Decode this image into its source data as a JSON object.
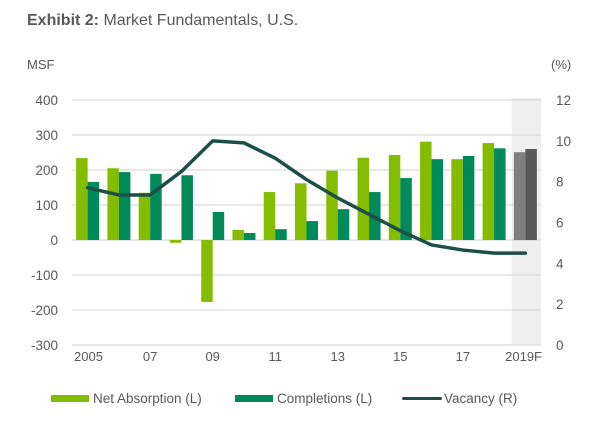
{
  "title": {
    "prefix": "Exhibit 2:",
    "text": " Market Fundamentals, U.S."
  },
  "left_unit": "MSF",
  "right_unit": "(%)",
  "colors": {
    "net_absorption": "#84bd00",
    "completions": "#008a5a",
    "vacancy": "#1d4f48",
    "forecast_net_absorption": "#7f7f7f",
    "forecast_completions": "#595959",
    "forecast_shade": "#efefef",
    "grid": "#d9d9d9"
  },
  "legend": [
    {
      "label": "Net Absorption (L)",
      "kind": "bar",
      "series": "net_absorption"
    },
    {
      "label": "Completions (L)",
      "kind": "bar",
      "series": "completions"
    },
    {
      "label": "Vacancy (R)",
      "kind": "line",
      "series": "vacancy"
    }
  ],
  "chart_data": {
    "type": "bar",
    "title": "Exhibit 2: Market Fundamentals, U.S.",
    "categories": [
      "2005",
      "2006",
      "2007",
      "2008",
      "2009",
      "2010",
      "2011",
      "2012",
      "2013",
      "2014",
      "2015",
      "2016",
      "2017",
      "2018",
      "2019F"
    ],
    "x_tick_labels": [
      "2005",
      "",
      "07",
      "",
      "09",
      "",
      "11",
      "",
      "13",
      "",
      "15",
      "",
      "17",
      "",
      "2019F"
    ],
    "forecast_categories": [
      "2019F"
    ],
    "series": [
      {
        "name": "Net Absorption (L)",
        "type": "bar",
        "axis": "left",
        "values": [
          234,
          205,
          135,
          -8,
          -177,
          29,
          137,
          162,
          198,
          235,
          243,
          281,
          231,
          277,
          251
        ]
      },
      {
        "name": "Completions (L)",
        "type": "bar",
        "axis": "left",
        "values": [
          166,
          194,
          189,
          185,
          80,
          20,
          31,
          54,
          88,
          137,
          177,
          231,
          240,
          262,
          260
        ]
      },
      {
        "name": "Vacancy (R)",
        "type": "line",
        "axis": "right",
        "values": [
          7.7,
          7.35,
          7.35,
          8.5,
          10.0,
          9.9,
          9.15,
          8.1,
          7.2,
          6.4,
          5.6,
          4.9,
          4.65,
          4.5,
          4.5
        ]
      }
    ],
    "ylabel": "MSF",
    "ylim": [
      -300,
      400
    ],
    "yticks": [
      400,
      300,
      200,
      100,
      0,
      -100,
      -200,
      -300
    ],
    "y2label": "(%)",
    "y2lim": [
      0,
      12
    ],
    "y2ticks": [
      12,
      10,
      8,
      6,
      4,
      2,
      0
    ],
    "grid": true,
    "legend_position": "bottom"
  }
}
